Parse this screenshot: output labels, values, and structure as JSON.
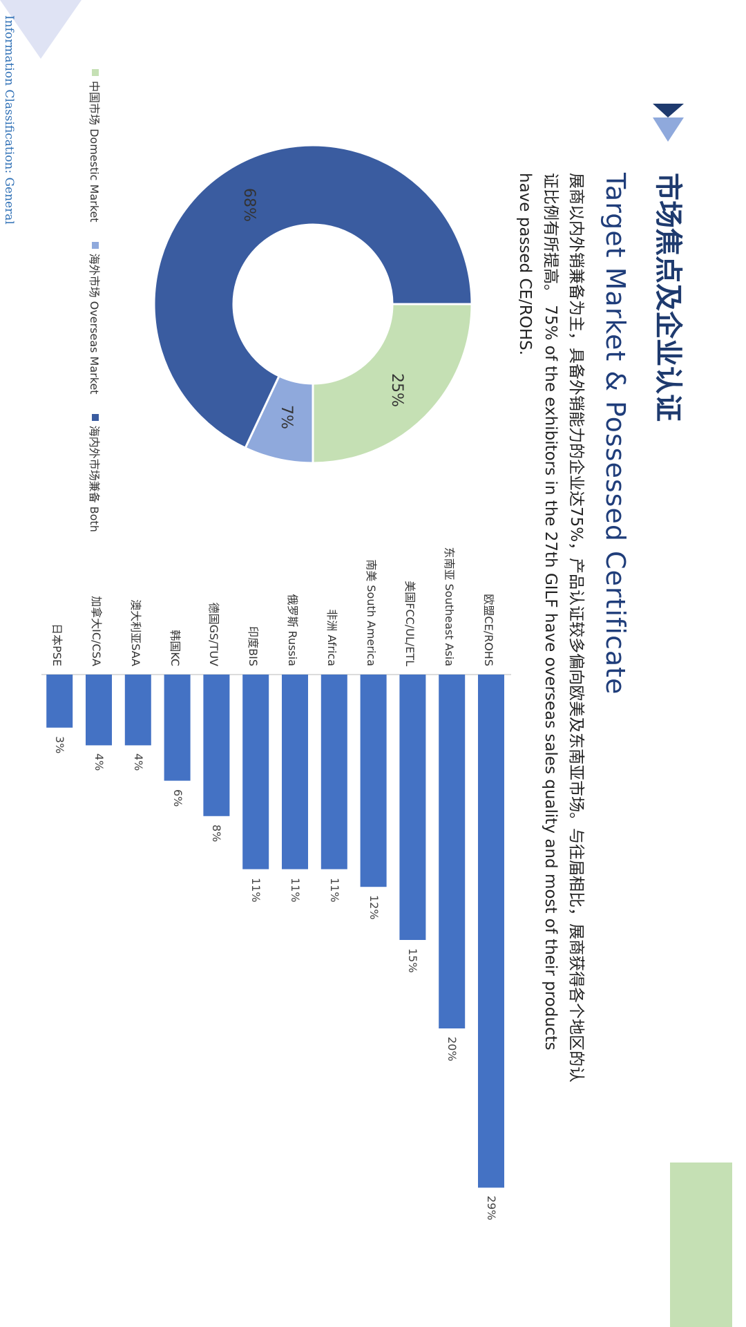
{
  "page": {
    "heading": "市场焦点及企业认证",
    "subheading": "Target Market & Possessed Certificate",
    "description": "展商以内外销兼备为主，具备外销能力的企业达75%，产品认证较多偏向欧美及东南亚市场。与往届相比，展商获得各个地区的认证比例有所提高。 75% of the exhibitors in the 27th GILF have overseas sales quality and most of their products have passed CE/ROHS.",
    "footer": "Information Classification: General"
  },
  "colors": {
    "navy": "#1e3a6e",
    "light_blue": "#8fa9dc",
    "green": "#c5e0b4",
    "bar_blue": "#4472c4",
    "donut_dark": "#3a5ca0"
  },
  "chart_data": [
    {
      "type": "pie",
      "categories": [
        "中国市场 Domestic Market",
        "海外市场 Overseas Market",
        "海内外市场兼备 Both"
      ],
      "values": [
        25,
        7,
        68
      ],
      "labels": [
        "25%",
        "7%",
        "68%"
      ],
      "colors": [
        "#c5e0b4",
        "#8fa9dc",
        "#3a5ca0"
      ],
      "legend": "bottom"
    },
    {
      "type": "bar",
      "categories": [
        "欧盟CE/ROHS",
        "东南亚 Southeast Asia",
        "美国FCC/UL/ETL",
        "南美 South America",
        "非洲 Africa",
        "俄罗斯 Russia",
        "印度BIS",
        "德国GS/TUV",
        "韩国KC",
        "澳大利亚SAA",
        "加拿大IC/CSA",
        "日本PSE"
      ],
      "values": [
        29,
        20,
        15,
        12,
        11,
        11,
        11,
        8,
        6,
        4,
        4,
        3
      ],
      "labels": [
        "29%",
        "20%",
        "15%",
        "12%",
        "11%",
        "11%",
        "11%",
        "8%",
        "6%",
        "4%",
        "4%",
        "3%"
      ],
      "color": "#4472c4"
    }
  ]
}
